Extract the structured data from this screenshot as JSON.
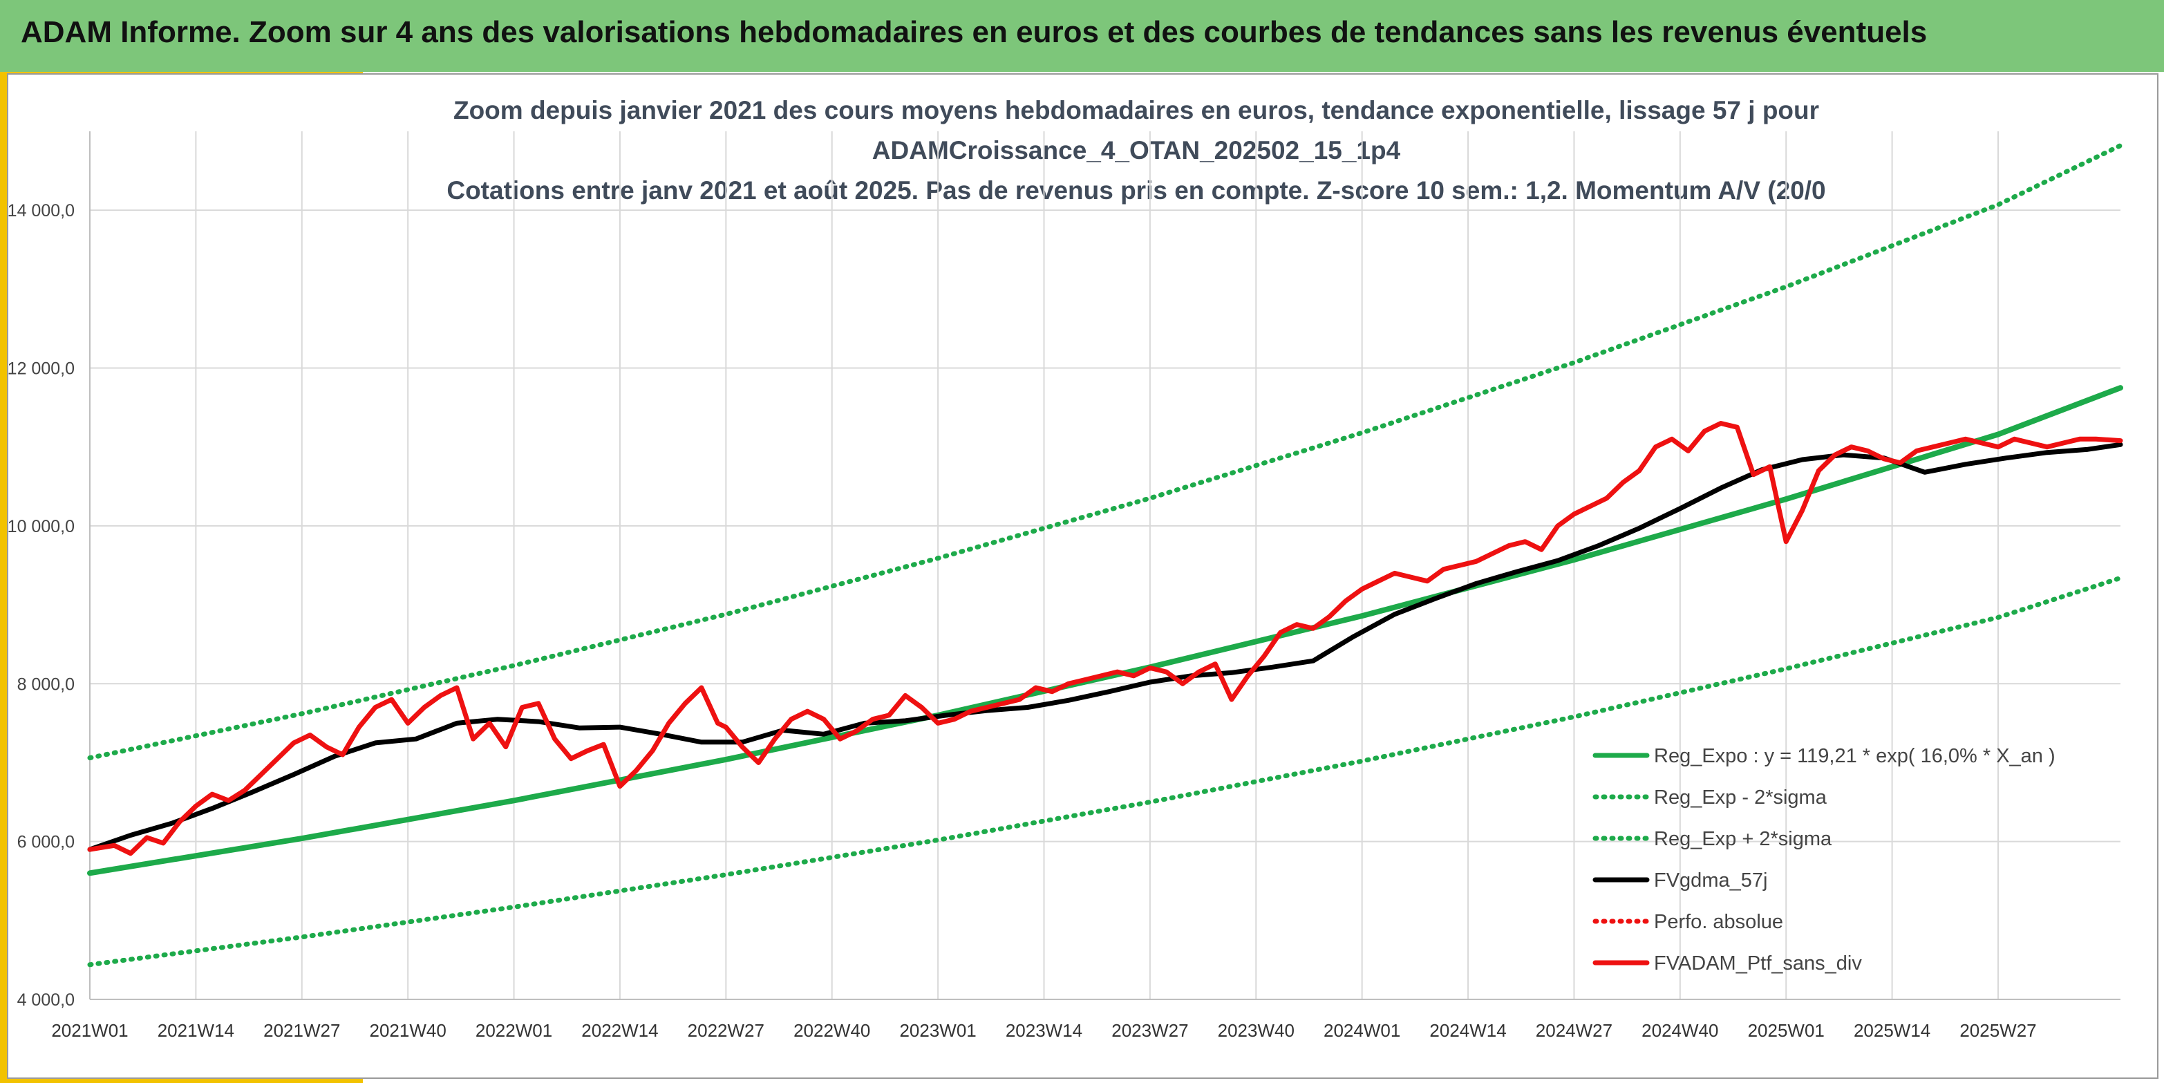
{
  "header": {
    "title": "ADAM Informe. Zoom sur 4 ans des valorisations hebdomadaires en euros et des courbes de tendances sans les revenus éventuels"
  },
  "colors": {
    "header_bg": "#7dc67a",
    "accent": "#f2c200",
    "green": "#1daa4a",
    "black": "#000000",
    "red": "#ee1111",
    "grid": "#d9d9d9"
  },
  "chart_data": {
    "type": "line",
    "title_lines": [
      "Zoom depuis janvier 2021 des cours moyens hebdomadaires en euros, tendance exponentielle, lissage 57 j pour",
      "ADAMCroissance_4_OTAN_202502_15_1p4",
      "Cotations entre janv 2021 et août 2025. Pas de revenus pris en compte. Z-score 10 sem.: 1,2. Momentum A/V (20/0"
    ],
    "x_tick_labels": [
      "2021W01",
      "2021W14",
      "2021W27",
      "2021W40",
      "2022W01",
      "2022W14",
      "2022W27",
      "2022W40",
      "2023W01",
      "2023W14",
      "2023W27",
      "2023W40",
      "2024W01",
      "2024W14",
      "2024W27",
      "2024W40",
      "2025W01",
      "2025W14",
      "2025W27"
    ],
    "x_tick_spacing_weeks": 13,
    "x_range_weeks": [
      0,
      249
    ],
    "ylim": [
      4000,
      15000
    ],
    "y_ticks": [
      4000,
      6000,
      8000,
      10000,
      12000,
      14000
    ],
    "y_tick_labels": [
      "4 000,0",
      "6 000,0",
      "8 000,0",
      "10 000,0",
      "12 000,0",
      "14 000,0"
    ],
    "grid": true,
    "legend_position": "bottom-right",
    "series": [
      {
        "name": "Reg_Expo : y = 119,21 * exp( 16,0% *  X_an )",
        "style": "solid",
        "color": "#1daa4a",
        "x": [
          0,
          26,
          52,
          78,
          104,
          130,
          156,
          182,
          208,
          234,
          249
        ],
        "values": [
          5600,
          6040,
          6520,
          7040,
          7600,
          8210,
          8860,
          9570,
          10340,
          11160,
          11750
        ]
      },
      {
        "name": "Reg_Exp - 2*sigma",
        "style": "dotted",
        "color": "#1daa4a",
        "x": [
          0,
          26,
          52,
          78,
          104,
          130,
          156,
          182,
          208,
          234,
          249
        ],
        "values": [
          4440,
          4790,
          5170,
          5580,
          6020,
          6500,
          7020,
          7580,
          8190,
          8840,
          9340
        ]
      },
      {
        "name": "Reg_Exp + 2*sigma",
        "style": "dotted",
        "color": "#1daa4a",
        "x": [
          0,
          26,
          52,
          78,
          104,
          130,
          156,
          182,
          208,
          234,
          249
        ],
        "values": [
          7060,
          7620,
          8230,
          8880,
          9590,
          10350,
          11180,
          12070,
          13030,
          14070,
          14820
        ]
      },
      {
        "name": "FVgdma_57j",
        "style": "solid",
        "color": "#000000",
        "x": [
          0,
          5,
          10,
          15,
          20,
          25,
          30,
          35,
          40,
          45,
          50,
          55,
          60,
          65,
          70,
          75,
          80,
          85,
          90,
          95,
          100,
          105,
          110,
          115,
          120,
          125,
          130,
          135,
          140,
          145,
          150,
          155,
          160,
          165,
          170,
          175,
          180,
          185,
          190,
          195,
          200,
          205,
          210,
          215,
          220,
          225,
          230,
          235,
          240,
          245,
          249
        ],
        "values": [
          5900,
          6080,
          6230,
          6420,
          6630,
          6850,
          7080,
          7250,
          7300,
          7500,
          7550,
          7520,
          7440,
          7450,
          7360,
          7260,
          7260,
          7410,
          7360,
          7500,
          7530,
          7600,
          7660,
          7700,
          7790,
          7900,
          8020,
          8100,
          8140,
          8210,
          8290,
          8600,
          8880,
          9080,
          9270,
          9420,
          9560,
          9750,
          9970,
          10220,
          10480,
          10710,
          10840,
          10900,
          10860,
          10680,
          10780,
          10860,
          10930,
          10970,
          11030
        ]
      },
      {
        "name": "Perfo. absolue",
        "style": "dotted",
        "color": "#ee1111",
        "x": [],
        "values": []
      },
      {
        "name": "FVADAM_Ptf_sans_div",
        "style": "solid",
        "color": "#ee1111",
        "x": [
          0,
          3,
          5,
          7,
          9,
          11,
          13,
          15,
          17,
          19,
          21,
          23,
          25,
          27,
          29,
          31,
          33,
          35,
          37,
          39,
          41,
          43,
          45,
          47,
          49,
          51,
          53,
          55,
          57,
          59,
          61,
          63,
          65,
          67,
          69,
          71,
          73,
          75,
          77,
          78,
          80,
          82,
          84,
          86,
          88,
          90,
          92,
          94,
          96,
          98,
          100,
          102,
          104,
          106,
          108,
          110,
          112,
          114,
          116,
          118,
          120,
          122,
          124,
          126,
          128,
          130,
          132,
          134,
          136,
          138,
          140,
          142,
          144,
          146,
          148,
          150,
          152,
          154,
          156,
          158,
          160,
          162,
          164,
          166,
          168,
          170,
          172,
          174,
          176,
          178,
          180,
          182,
          184,
          186,
          188,
          190,
          192,
          194,
          196,
          198,
          200,
          202,
          204,
          206,
          208,
          210,
          212,
          214,
          216,
          218,
          220,
          222,
          224,
          226,
          228,
          230,
          232,
          234,
          236,
          238,
          240,
          242,
          244,
          246,
          249
        ],
        "values": [
          5900,
          5950,
          5850,
          6050,
          5980,
          6250,
          6450,
          6600,
          6520,
          6650,
          6850,
          7050,
          7250,
          7350,
          7200,
          7100,
          7450,
          7700,
          7800,
          7500,
          7700,
          7850,
          7950,
          7300,
          7500,
          7200,
          7700,
          7750,
          7300,
          7050,
          7150,
          7230,
          6700,
          6900,
          7150,
          7500,
          7750,
          7950,
          7500,
          7450,
          7200,
          7000,
          7300,
          7550,
          7650,
          7550,
          7300,
          7400,
          7550,
          7600,
          7850,
          7700,
          7500,
          7550,
          7650,
          7700,
          7750,
          7800,
          7950,
          7900,
          8000,
          8050,
          8100,
          8150,
          8100,
          8200,
          8150,
          8000,
          8150,
          8250,
          7800,
          8100,
          8350,
          8650,
          8750,
          8700,
          8850,
          9050,
          9200,
          9300,
          9400,
          9350,
          9300,
          9450,
          9500,
          9550,
          9650,
          9750,
          9800,
          9700,
          10000,
          10150,
          10250,
          10350,
          10550,
          10700,
          11000,
          11100,
          10950,
          11200,
          11300,
          11250,
          10650,
          10750,
          9800,
          10200,
          10700,
          10900,
          11000,
          10950,
          10850,
          10800,
          10950,
          11000,
          11050,
          11100,
          11050,
          11000,
          11100,
          11050,
          11000,
          11050,
          11100,
          11100,
          11080
        ]
      }
    ]
  }
}
